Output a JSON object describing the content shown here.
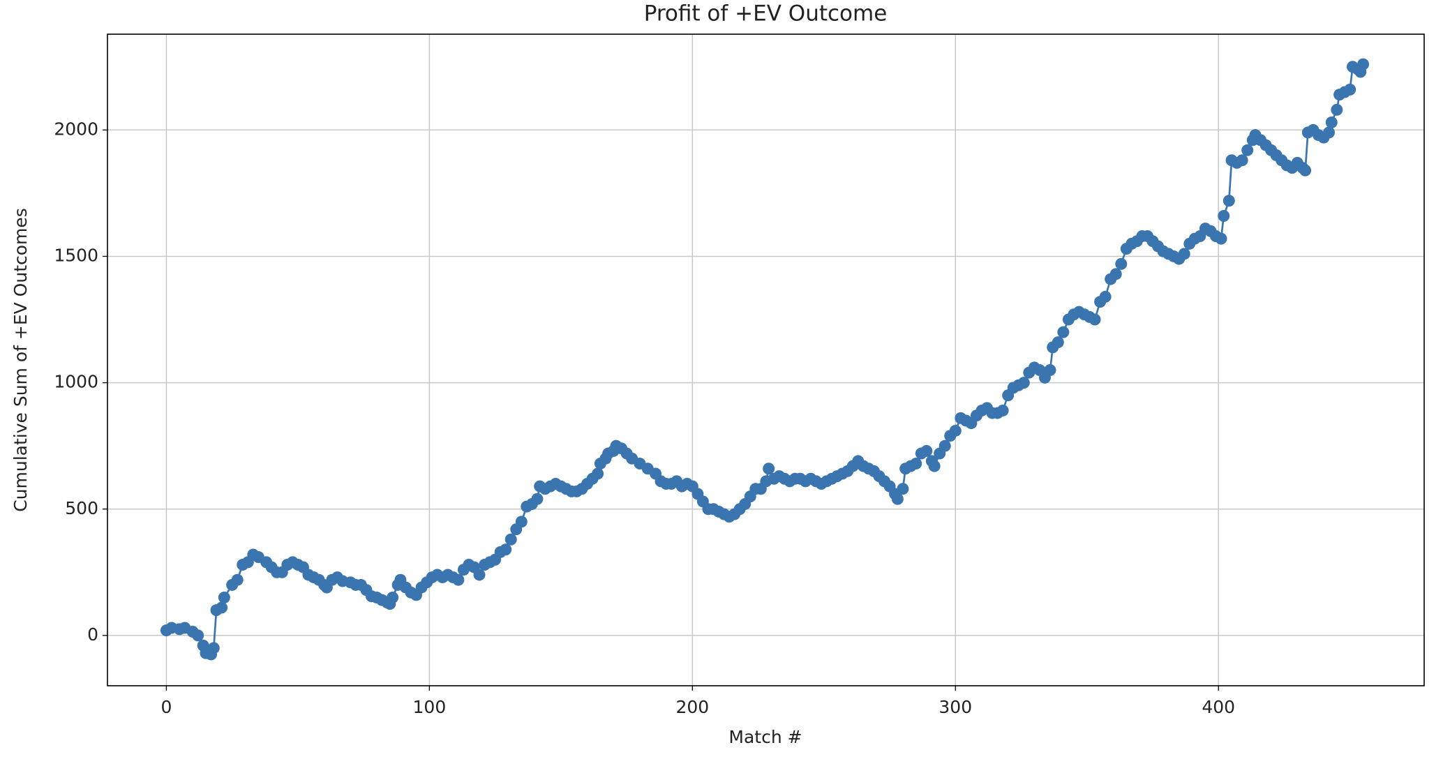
{
  "chart_data": {
    "type": "line",
    "title": "Profit of +EV Outcome",
    "x_label": "Match #",
    "y_label": "Cumulative Sum of +EV Outcomes",
    "color": "#3b75af",
    "grid": true,
    "markers": true,
    "xlim": [
      -22.4,
      478.2
    ],
    "ylim": [
      -199,
      2379
    ],
    "xticks": [
      0,
      100,
      200,
      300,
      400
    ],
    "yticks": [
      0,
      500,
      1000,
      1500,
      2000
    ],
    "x": [
      0,
      2,
      5,
      7,
      10,
      12,
      14,
      15,
      17,
      18,
      19,
      21,
      22,
      25,
      27,
      29,
      31,
      33,
      35,
      38,
      40,
      42,
      44,
      46,
      48,
      50,
      52,
      54,
      56,
      58,
      60,
      61,
      63,
      65,
      67,
      70,
      72,
      74,
      76,
      78,
      80,
      82,
      84,
      85,
      86,
      88,
      89,
      91,
      93,
      95,
      97,
      99,
      101,
      103,
      105,
      107,
      109,
      111,
      113,
      115,
      117,
      119,
      121,
      123,
      125,
      127,
      129,
      131,
      133,
      135,
      137,
      139,
      141,
      142,
      144,
      146,
      148,
      150,
      152,
      154,
      156,
      158,
      160,
      162,
      164,
      165,
      167,
      168,
      170,
      171,
      173,
      175,
      177,
      180,
      183,
      186,
      188,
      190,
      192,
      194,
      196,
      198,
      200,
      202,
      204,
      206,
      208,
      210,
      212,
      214,
      216,
      218,
      220,
      222,
      224,
      226,
      228,
      229,
      231,
      233,
      235,
      237,
      239,
      241,
      243,
      245,
      247,
      249,
      251,
      253,
      255,
      257,
      259,
      261,
      263,
      265,
      267,
      269,
      271,
      273,
      275,
      277,
      278,
      280,
      281,
      283,
      285,
      287,
      289,
      291,
      292,
      294,
      296,
      298,
      300,
      302,
      304,
      306,
      308,
      310,
      312,
      314,
      316,
      318,
      320,
      322,
      324,
      326,
      328,
      330,
      332,
      334,
      336,
      337,
      339,
      341,
      343,
      345,
      347,
      349,
      351,
      353,
      355,
      357,
      359,
      361,
      363,
      365,
      367,
      369,
      371,
      373,
      375,
      377,
      379,
      381,
      383,
      385,
      387,
      389,
      391,
      393,
      395,
      397,
      399,
      401,
      402,
      404,
      405,
      407,
      409,
      411,
      413,
      414,
      416,
      418,
      420,
      422,
      424,
      426,
      428,
      430,
      432,
      433,
      434,
      436,
      438,
      440,
      442,
      443,
      445,
      446,
      448,
      450,
      451,
      453,
      454,
      455
    ],
    "values": [
      20,
      30,
      25,
      30,
      15,
      0,
      -40,
      -70,
      -75,
      -50,
      100,
      110,
      150,
      200,
      220,
      280,
      290,
      320,
      310,
      290,
      270,
      250,
      250,
      280,
      290,
      280,
      270,
      240,
      230,
      220,
      200,
      190,
      220,
      230,
      215,
      210,
      200,
      200,
      180,
      155,
      150,
      140,
      130,
      125,
      150,
      200,
      220,
      190,
      170,
      160,
      190,
      210,
      230,
      240,
      230,
      240,
      230,
      220,
      260,
      280,
      270,
      240,
      280,
      290,
      300,
      330,
      340,
      380,
      420,
      450,
      510,
      520,
      540,
      590,
      580,
      590,
      600,
      590,
      580,
      570,
      570,
      580,
      600,
      620,
      640,
      680,
      700,
      720,
      730,
      750,
      740,
      720,
      700,
      680,
      660,
      640,
      610,
      600,
      600,
      610,
      590,
      600,
      590,
      560,
      530,
      500,
      500,
      490,
      480,
      470,
      480,
      500,
      520,
      550,
      580,
      580,
      610,
      660,
      620,
      630,
      620,
      610,
      620,
      620,
      610,
      620,
      610,
      600,
      610,
      620,
      630,
      640,
      650,
      670,
      690,
      670,
      660,
      650,
      630,
      610,
      590,
      560,
      540,
      580,
      660,
      670,
      680,
      720,
      730,
      690,
      670,
      720,
      750,
      790,
      810,
      860,
      850,
      840,
      870,
      890,
      900,
      880,
      880,
      890,
      950,
      980,
      990,
      1000,
      1040,
      1060,
      1050,
      1020,
      1050,
      1140,
      1160,
      1200,
      1250,
      1270,
      1280,
      1270,
      1260,
      1250,
      1320,
      1340,
      1410,
      1430,
      1470,
      1530,
      1550,
      1560,
      1580,
      1580,
      1560,
      1540,
      1520,
      1510,
      1500,
      1490,
      1510,
      1550,
      1570,
      1580,
      1610,
      1600,
      1580,
      1570,
      1660,
      1720,
      1880,
      1870,
      1880,
      1920,
      1960,
      1980,
      1960,
      1940,
      1920,
      1900,
      1880,
      1860,
      1850,
      1870,
      1850,
      1840,
      1990,
      2000,
      1980,
      1970,
      1990,
      2030,
      2080,
      2140,
      2150,
      2160,
      2250,
      2240,
      2230,
      2260
    ]
  }
}
